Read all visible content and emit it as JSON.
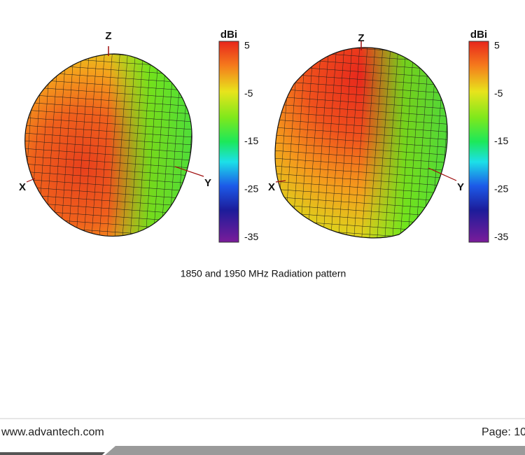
{
  "figures": [
    {
      "axes": {
        "z": "Z",
        "x": "X",
        "y": "Y"
      },
      "colorbar": {
        "label": "dBi",
        "lim": [
          -36,
          6
        ],
        "ticks": [
          5,
          -5,
          -15,
          -25,
          -35
        ]
      }
    },
    {
      "axes": {
        "z": "Z",
        "x": "X",
        "y": "Y"
      },
      "colorbar": {
        "label": "dBi",
        "lim": [
          -36,
          6
        ],
        "ticks": [
          5,
          -5,
          -15,
          -25,
          -35
        ]
      }
    }
  ],
  "caption": "1850 and 1950 MHz Radiation pattern",
  "footer": {
    "url": "www.advantech.com",
    "page": "Page: 10"
  }
}
